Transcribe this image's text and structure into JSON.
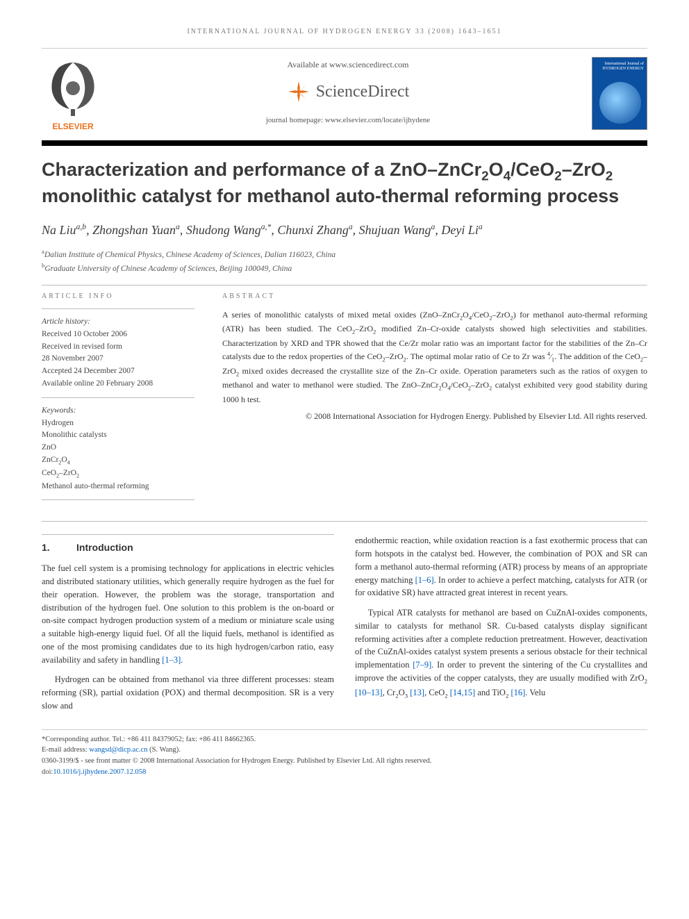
{
  "running_head": "INTERNATIONAL JOURNAL OF HYDROGEN ENERGY 33 (2008) 1643–1651",
  "header": {
    "available_at": "Available at www.sciencedirect.com",
    "brand": "ScienceDirect",
    "homepage": "journal homepage: www.elsevier.com/locate/ijhydene",
    "cover_title": "International Journal of HYDROGEN ENERGY"
  },
  "title_html": "Characterization and performance of a ZnO–ZnCr<sub>2</sub>O<sub>4</sub>/CeO<sub>2</sub>–ZrO<sub>2</sub> monolithic catalyst for methanol auto-thermal reforming process",
  "authors_html": "Na Liu<span class=\"affil-mark\">a,b</span>, Zhongshan Yuan<span class=\"affil-mark\">a</span>, Shudong Wang<span class=\"affil-mark\">a,*</span>, Chunxi Zhang<span class=\"affil-mark\">a</span>, Shujuan Wang<span class=\"affil-mark\">a</span>, Deyi Li<span class=\"affil-mark\">a</span>",
  "affiliations": [
    {
      "mark": "a",
      "text": "Dalian Institute of Chemical Physics, Chinese Academy of Sciences, Dalian 116023, China"
    },
    {
      "mark": "b",
      "text": "Graduate University of Chinese Academy of Sciences, Beijing 100049, China"
    }
  ],
  "article_info": {
    "heading": "ARTICLE INFO",
    "history_label": "Article history:",
    "history": [
      "Received 10 October 2006",
      "Received in revised form",
      "28 November 2007",
      "Accepted 24 December 2007",
      "Available online 20 February 2008"
    ],
    "keywords_label": "Keywords:",
    "keywords_html": [
      "Hydrogen",
      "Monolithic catalysts",
      "ZnO",
      "ZnCr<sub>2</sub>O<sub>4</sub>",
      "CeO<sub>2</sub>–ZrO<sub>2</sub>",
      "Methanol auto-thermal reforming"
    ]
  },
  "abstract": {
    "heading": "ABSTRACT",
    "text_html": "A series of monolithic catalysts of mixed metal oxides (ZnO–ZnCr<sub>2</sub>O<sub>4</sub>/CeO<sub>2</sub>–ZrO<sub>2</sub>) for methanol auto-thermal reforming (ATR) has been studied. The CeO<sub>2</sub>–ZrO<sub>2</sub> modified Zn–Cr-oxide catalysts showed high selectivities and stabilities. Characterization by XRD and TPR showed that the Ce/Zr molar ratio was an important factor for the stabilities of the Zn–Cr catalysts due to the redox properties of the CeO<sub>2</sub>–ZrO<sub>2</sub>. The optimal molar ratio of Ce to Zr was <sup>4</sup>⁄<sub>1</sub>. The addition of the CeO<sub>2</sub>–ZrO<sub>2</sub> mixed oxides decreased the crystallite size of the Zn–Cr oxide. Operation parameters such as the ratios of oxygen to methanol and water to methanol were studied. The ZnO–ZnCr<sub>2</sub>O<sub>4</sub>/CeO<sub>2</sub>–ZrO<sub>2</sub> catalyst exhibited very good stability during 1000 h test.",
    "copyright": "© 2008 International Association for Hydrogen Energy. Published by Elsevier Ltd. All rights reserved."
  },
  "section1": {
    "num": "1.",
    "title": "Introduction",
    "col1_paras_html": [
      "The fuel cell system is a promising technology for applications in electric vehicles and distributed stationary utilities, which generally require hydrogen as the fuel for their operation. However, the problem was the storage, transportation and distribution of the hydrogen fuel. One solution to this problem is the on-board or on-site compact hydrogen production system of a medium or miniature scale using a suitable high-energy liquid fuel. Of all the liquid fuels, methanol is identified as one of the most promising candidates due to its high hydrogen/carbon ratio, easy availability and safety in handling <span class=\"cite\">[1–3]</span>.",
      "Hydrogen can be obtained from methanol via three different processes: steam reforming (SR), partial oxidation (POX) and thermal decomposition. SR is a very slow and"
    ],
    "col2_paras_html": [
      "endothermic reaction, while oxidation reaction is a fast exothermic process that can form hotspots in the catalyst bed. However, the combination of POX and SR can form a methanol auto-thermal reforming (ATR) process by means of an appropriate energy matching <span class=\"cite\">[1–6]</span>. In order to achieve a perfect matching, catalysts for ATR (or for oxidative SR) have attracted great interest in recent years.",
      "Typical ATR catalysts for methanol are based on CuZnAl-oxides components, similar to catalysts for methanol SR. Cu-based catalysts display significant reforming activities after a complete reduction pretreatment. However, deactivation of the CuZnAl-oxides catalyst system presents a serious obstacle for their technical implementation <span class=\"cite\">[7–9]</span>. In order to prevent the sintering of the Cu crystallites and improve the activities of the copper catalysts, they are usually modified with ZrO<sub>2</sub> <span class=\"cite\">[10–13]</span>, Cr<sub>2</sub>O<sub>3</sub> <span class=\"cite\">[13]</span>, CeO<sub>2</sub> <span class=\"cite\">[14,15]</span> and TiO<sub>2</sub> <span class=\"cite\">[16]</span>. Velu"
    ]
  },
  "footnotes": {
    "corresponding": "*Corresponding author. Tel.: +86 411 84379052; fax: +86 411 84662365.",
    "email_label": "E-mail address: ",
    "email": "wangsd@dicp.ac.cn",
    "email_person": " (S. Wang).",
    "front_matter": "0360-3199/$ - see front matter © 2008 International Association for Hydrogen Energy. Published by Elsevier Ltd. All rights reserved.",
    "doi_label": "doi:",
    "doi": "10.1016/j.ijhydene.2007.12.058"
  },
  "colors": {
    "accent_orange": "#e9711c",
    "link_blue": "#0060c0",
    "rule_black": "#000000",
    "text_gray": "#333333",
    "cover_blue": "#0a4fa0"
  }
}
